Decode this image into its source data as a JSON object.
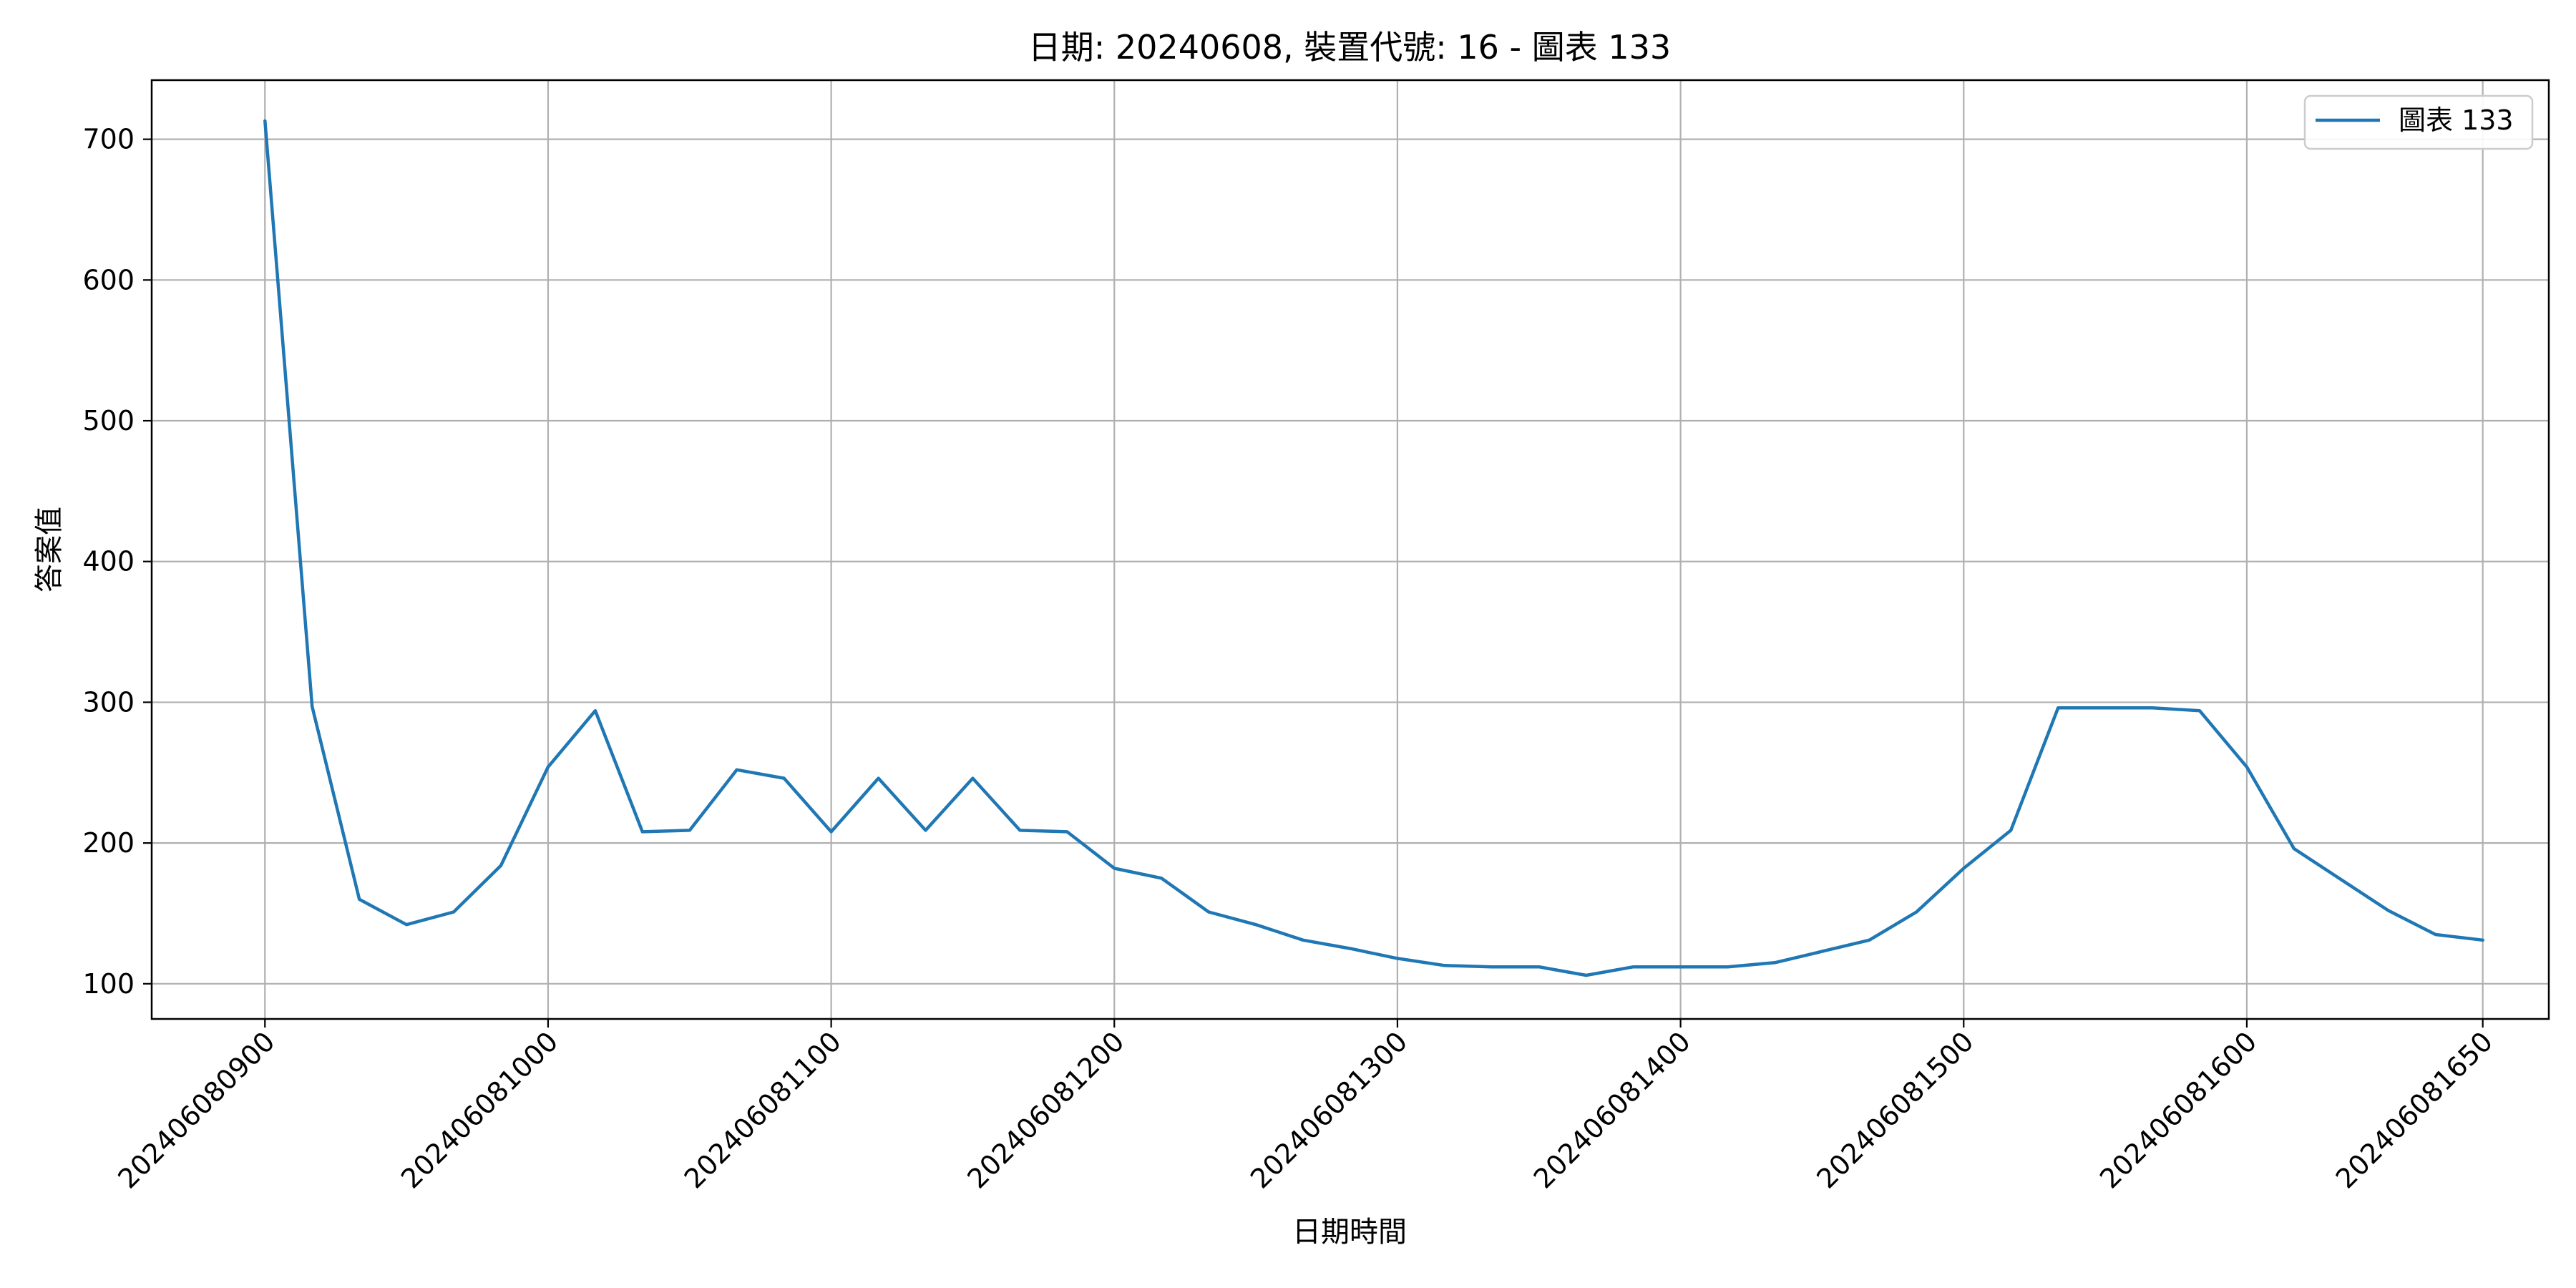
{
  "chart_data": {
    "type": "line",
    "title": "日期: 20240608, 裝置代號: 16 - 圖表 133",
    "xlabel": "日期時間",
    "ylabel": "答案值",
    "x_tick_labels": [
      "202406080900",
      "202406081000",
      "202406081100",
      "202406081200",
      "202406081300",
      "202406081400",
      "202406081500",
      "202406081600",
      "202406081650"
    ],
    "y_ticks": [
      100,
      200,
      300,
      400,
      500,
      600,
      700
    ],
    "ylim": [
      75,
      742
    ],
    "xlim": [
      "202406080836",
      "202406081704"
    ],
    "grid": true,
    "legend": "top-right",
    "series": [
      {
        "name": "圖表 133",
        "color": "#1f77b4",
        "x": [
          "202406080900",
          "202406080910",
          "202406080920",
          "202406080930",
          "202406080940",
          "202406080950",
          "202406081000",
          "202406081010",
          "202406081020",
          "202406081030",
          "202406081040",
          "202406081050",
          "202406081100",
          "202406081110",
          "202406081120",
          "202406081130",
          "202406081140",
          "202406081150",
          "202406081200",
          "202406081210",
          "202406081220",
          "202406081230",
          "202406081240",
          "202406081250",
          "202406081300",
          "202406081310",
          "202406081320",
          "202406081330",
          "202406081340",
          "202406081350",
          "202406081400",
          "202406081410",
          "202406081420",
          "202406081430",
          "202406081440",
          "202406081450",
          "202406081500",
          "202406081510",
          "202406081520",
          "202406081530",
          "202406081540",
          "202406081550",
          "202406081600",
          "202406081610",
          "202406081620",
          "202406081630",
          "202406081640",
          "202406081650"
        ],
        "values": [
          713,
          297,
          160,
          142,
          151,
          184,
          254,
          294,
          208,
          209,
          252,
          246,
          208,
          246,
          209,
          246,
          209,
          208,
          182,
          175,
          151,
          142,
          131,
          125,
          118,
          113,
          112,
          112,
          106,
          112,
          112,
          112,
          115,
          123,
          131,
          151,
          182,
          209,
          296,
          296,
          296,
          294,
          254,
          196,
          174,
          152,
          135,
          131
        ]
      }
    ]
  }
}
